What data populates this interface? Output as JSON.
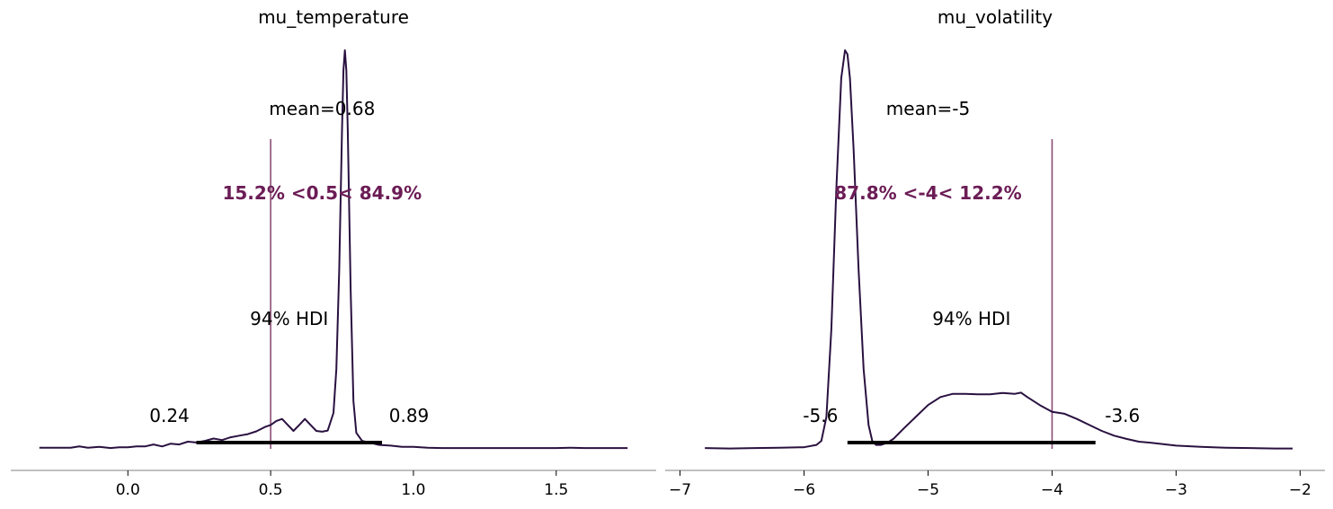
{
  "chart_data": [
    {
      "type": "line",
      "title": "mu_temperature",
      "xlim": [
        -0.41,
        1.85
      ],
      "ylim": [
        0,
        1
      ],
      "xticks": [
        0.0,
        0.5,
        1.0,
        1.5
      ],
      "xtick_labels": [
        "0.0",
        "0.5",
        "1.0",
        "1.5"
      ],
      "density": {
        "x": [
          -0.31,
          -0.25,
          -0.2,
          -0.17,
          -0.14,
          -0.1,
          -0.06,
          -0.03,
          0.0,
          0.03,
          0.06,
          0.09,
          0.12,
          0.15,
          0.18,
          0.21,
          0.24,
          0.27,
          0.3,
          0.33,
          0.36,
          0.39,
          0.42,
          0.45,
          0.48,
          0.5,
          0.52,
          0.54,
          0.56,
          0.58,
          0.6,
          0.62,
          0.64,
          0.66,
          0.68,
          0.7,
          0.72,
          0.73,
          0.74,
          0.75,
          0.755,
          0.76,
          0.765,
          0.77,
          0.78,
          0.79,
          0.8,
          0.82,
          0.85,
          0.88,
          0.92,
          0.96,
          1.0,
          1.05,
          1.1,
          1.2,
          1.3,
          1.4,
          1.5,
          1.55,
          1.6,
          1.7,
          1.75
        ],
        "y": [
          0.003,
          0.003,
          0.003,
          0.006,
          0.003,
          0.005,
          0.002,
          0.004,
          0.004,
          0.006,
          0.006,
          0.011,
          0.006,
          0.013,
          0.011,
          0.018,
          0.016,
          0.02,
          0.026,
          0.022,
          0.029,
          0.033,
          0.037,
          0.044,
          0.055,
          0.06,
          0.07,
          0.075,
          0.06,
          0.045,
          0.06,
          0.075,
          0.06,
          0.045,
          0.043,
          0.046,
          0.09,
          0.2,
          0.45,
          0.8,
          0.95,
          1.0,
          0.95,
          0.8,
          0.4,
          0.12,
          0.04,
          0.02,
          0.015,
          0.01,
          0.008,
          0.005,
          0.005,
          0.003,
          0.002,
          0.002,
          0.002,
          0.002,
          0.002,
          0.003,
          0.002,
          0.002,
          0.002
        ]
      },
      "hdi": [
        0.24,
        0.89
      ],
      "hdi_label": "94% HDI",
      "hdi_low_label": "0.24",
      "hdi_high_label": "0.89",
      "mean_label": "mean=0.68",
      "ref_val": 0.5,
      "ref_label": "15.2% <0.5< 84.9%"
    },
    {
      "type": "line",
      "title": "mu_volatility",
      "xlim": [
        -7.12,
        -1.8
      ],
      "ylim": [
        0,
        1
      ],
      "xticks": [
        -7,
        -6,
        -5,
        -4,
        -3,
        -2
      ],
      "xtick_labels": [
        "−7",
        "−6",
        "−5",
        "−4",
        "−3",
        "−2"
      ],
      "density": {
        "x": [
          -6.8,
          -6.6,
          -6.4,
          -6.2,
          -6.0,
          -5.9,
          -5.86,
          -5.82,
          -5.78,
          -5.74,
          -5.7,
          -5.67,
          -5.65,
          -5.63,
          -5.6,
          -5.56,
          -5.52,
          -5.48,
          -5.45,
          -5.42,
          -5.38,
          -5.33,
          -5.28,
          -5.2,
          -5.1,
          -5.0,
          -4.9,
          -4.8,
          -4.7,
          -4.6,
          -4.5,
          -4.4,
          -4.3,
          -4.25,
          -4.2,
          -4.1,
          -4.0,
          -3.9,
          -3.8,
          -3.7,
          -3.6,
          -3.5,
          -3.4,
          -3.3,
          -3.2,
          -3.0,
          -2.8,
          -2.6,
          -2.4,
          -2.2,
          -2.06
        ],
        "y": [
          0.002,
          0.001,
          0.002,
          0.003,
          0.004,
          0.01,
          0.02,
          0.08,
          0.3,
          0.65,
          0.93,
          1.0,
          0.99,
          0.93,
          0.75,
          0.45,
          0.2,
          0.06,
          0.02,
          0.01,
          0.01,
          0.015,
          0.025,
          0.05,
          0.08,
          0.11,
          0.13,
          0.138,
          0.138,
          0.137,
          0.137,
          0.14,
          0.138,
          0.141,
          0.13,
          0.11,
          0.093,
          0.088,
          0.075,
          0.06,
          0.045,
          0.033,
          0.025,
          0.018,
          0.015,
          0.008,
          0.005,
          0.003,
          0.002,
          0.001,
          0.001
        ]
      },
      "hdi": [
        -5.65,
        -3.65
      ],
      "hdi_label": "94% HDI",
      "hdi_low_label": "-5.6",
      "hdi_high_label": "-3.6",
      "mean_label": "mean=-5",
      "ref_val": -4,
      "ref_label": "87.8% <-4< 12.2%"
    }
  ],
  "colors": {
    "density_line": "#2a1140",
    "ref_line": "#8a4d75",
    "ref_text": "#6b1c55",
    "hdi_bar": "#000000",
    "axis": "#808080"
  }
}
